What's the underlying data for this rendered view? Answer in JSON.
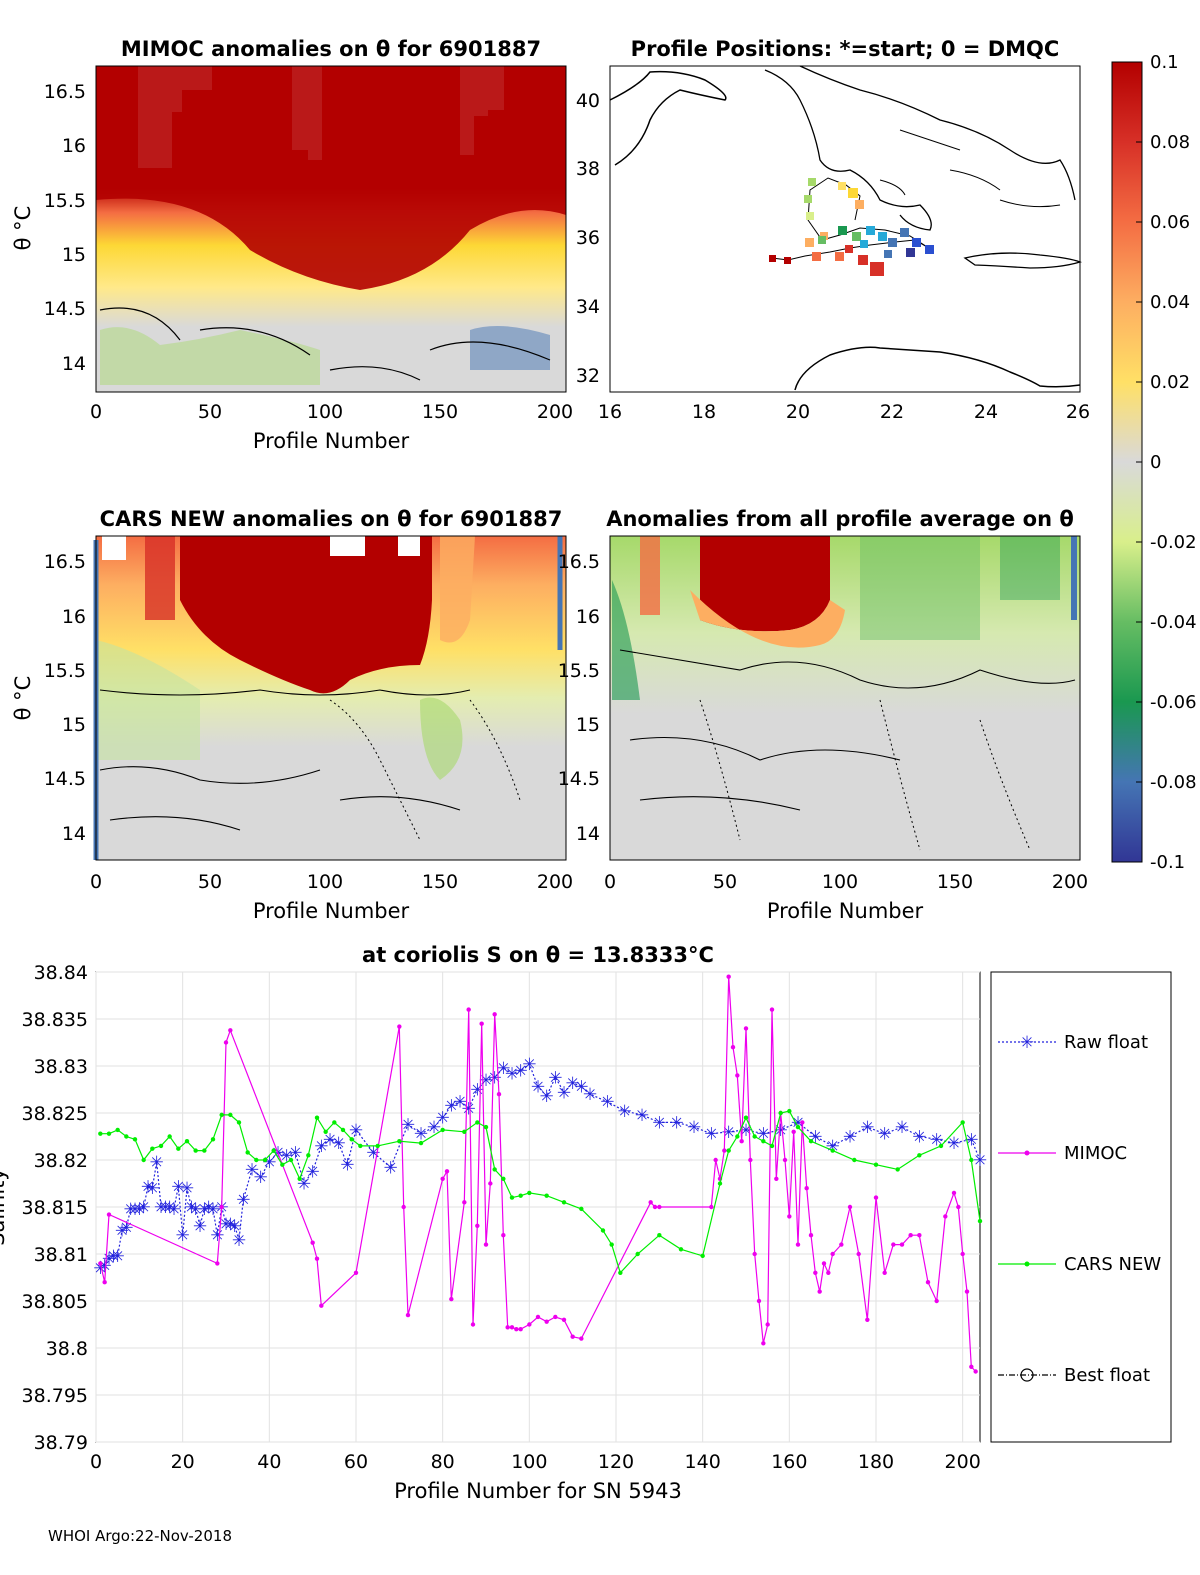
{
  "footer": "WHOI Argo:22-Nov-2018",
  "colorbar": {
    "ticks": [
      "0.1",
      "0.08",
      "0.06",
      "0.04",
      "0.02",
      "0",
      "-0.02",
      "-0.04",
      "-0.06",
      "-0.08",
      "-0.1"
    ],
    "range": [
      -0.1,
      0.1
    ],
    "colors": [
      "#313695",
      "#4575b4",
      "#1a9850",
      "#66bd63",
      "#a6d96a",
      "#d9ef8b",
      "#d9d9d9",
      "#ffe066",
      "#fdae61",
      "#f46d43",
      "#d73027",
      "#b30000"
    ]
  },
  "panel_mimoc": {
    "title": "MIMOC anomalies on θ  for 6901887",
    "ylabel": "θ °C",
    "xlabel": "Profile Number",
    "yticks": [
      "16.5",
      "16",
      "15.5",
      "15",
      "14.5",
      "14"
    ],
    "xticks": [
      "0",
      "50",
      "100",
      "150",
      "200"
    ]
  },
  "panel_map": {
    "title": "Profile Positions: *=start; 0 = DMQC",
    "yticks": [
      "40",
      "38",
      "36",
      "34",
      "32"
    ],
    "xticks": [
      "16",
      "18",
      "20",
      "22",
      "24",
      "26"
    ]
  },
  "panel_cars": {
    "title": "CARS NEW anomalies on θ for 6901887",
    "ylabel": "θ °C",
    "xlabel": "Profile Number",
    "yticks": [
      "16.5",
      "16",
      "15.5",
      "15",
      "14.5",
      "14"
    ],
    "xticks": [
      "0",
      "50",
      "100",
      "150",
      "200"
    ]
  },
  "panel_avg": {
    "title": "Anomalies from all profile average on θ",
    "xlabel": "Profile Number",
    "yticks": [
      "16.5",
      "16",
      "15.5",
      "15",
      "14.5",
      "14"
    ],
    "xticks": [
      "0",
      "50",
      "100",
      "150",
      "200"
    ]
  },
  "chart_data": {
    "type": "line",
    "title": "at coriolis S on θ = 13.8333°C",
    "xlabel": "Profile Number for SN 5943",
    "ylabel": "Salinity",
    "xlim": [
      0,
      204
    ],
    "ylim": [
      38.79,
      38.84
    ],
    "yticks": [
      "38.84",
      "38.835",
      "38.83",
      "38.825",
      "38.82",
      "38.815",
      "38.81",
      "38.805",
      "38.8",
      "38.795",
      "38.79"
    ],
    "xticks": [
      "0",
      "20",
      "40",
      "60",
      "80",
      "100",
      "120",
      "140",
      "160",
      "180",
      "200"
    ],
    "grid": true,
    "legend": [
      "Raw float",
      "MIMOC",
      "CARS NEW",
      "Best float"
    ],
    "series": [
      {
        "name": "Raw float",
        "color": "#2222dd",
        "marker": "asterisk",
        "x": [
          1,
          2,
          3,
          4,
          5,
          6,
          7,
          8,
          9,
          10,
          11,
          12,
          13,
          14,
          15,
          16,
          17,
          18,
          19,
          20,
          21,
          22,
          23,
          24,
          25,
          26,
          27,
          28,
          29,
          30,
          31,
          32,
          33,
          34,
          36,
          38,
          40,
          42,
          44,
          46,
          48,
          50,
          52,
          54,
          56,
          58,
          60,
          64,
          68,
          72,
          75,
          78,
          80,
          82,
          84,
          86,
          88,
          90,
          92,
          94,
          96,
          98,
          100,
          102,
          104,
          106,
          108,
          110,
          112,
          114,
          118,
          122,
          126,
          130,
          134,
          138,
          142,
          146,
          150,
          154,
          158,
          162,
          166,
          170,
          174,
          178,
          182,
          186,
          190,
          194,
          198,
          202,
          204
        ],
        "values": [
          38.8085,
          38.8088,
          38.8095,
          38.8098,
          38.8098,
          38.8125,
          38.8128,
          38.8148,
          38.8148,
          38.8148,
          38.815,
          38.8172,
          38.817,
          38.8198,
          38.815,
          38.815,
          38.815,
          38.8148,
          38.8172,
          38.812,
          38.817,
          38.815,
          38.8148,
          38.813,
          38.8148,
          38.815,
          38.8148,
          38.812,
          38.815,
          38.8132,
          38.8132,
          38.813,
          38.8115,
          38.8158,
          38.819,
          38.8182,
          38.8198,
          38.8208,
          38.8205,
          38.8208,
          38.8175,
          38.8188,
          38.8215,
          38.8222,
          38.8218,
          38.8195,
          38.8232,
          38.8208,
          38.8192,
          38.8238,
          38.8228,
          38.8235,
          38.8245,
          38.8258,
          38.8262,
          38.8255,
          38.8275,
          38.8285,
          38.8288,
          38.8298,
          38.8292,
          38.8295,
          38.8302,
          38.8278,
          38.8268,
          38.8288,
          38.8272,
          38.8282,
          38.8278,
          38.827,
          38.8262,
          38.8252,
          38.8248,
          38.824,
          38.824,
          38.8235,
          38.8228,
          38.823,
          38.8232,
          38.8228,
          38.8232,
          38.824,
          38.8225,
          38.8215,
          38.8225,
          38.8235,
          38.8228,
          38.8235,
          38.8225,
          38.8222,
          38.8218,
          38.8222,
          38.82
        ]
      },
      {
        "name": "MIMOC",
        "color": "#ee00ee",
        "marker": "dot",
        "x": [
          1,
          2,
          3,
          28,
          29,
          30,
          31,
          50,
          51,
          52,
          60,
          70,
          71,
          72,
          80,
          81,
          82,
          85,
          86,
          87,
          88,
          89,
          90,
          91,
          92,
          93,
          94,
          95,
          96,
          97,
          98,
          100,
          102,
          104,
          106,
          108,
          110,
          112,
          128,
          129,
          130,
          142,
          143,
          144,
          145,
          146,
          147,
          148,
          149,
          150,
          151,
          152,
          153,
          154,
          155,
          156,
          157,
          158,
          159,
          160,
          161,
          162,
          163,
          164,
          165,
          166,
          167,
          168,
          169,
          170,
          172,
          174,
          176,
          178,
          180,
          182,
          184,
          186,
          188,
          190,
          192,
          194,
          196,
          198,
          199,
          200,
          201,
          202,
          203
        ],
        "values": [
          38.809,
          38.807,
          38.8142,
          38.809,
          38.815,
          38.8325,
          38.8338,
          38.8112,
          38.8095,
          38.8045,
          38.808,
          38.8342,
          38.815,
          38.8035,
          38.818,
          38.8188,
          38.8052,
          38.8155,
          38.836,
          38.8025,
          38.813,
          38.8345,
          38.811,
          38.8175,
          38.8355,
          38.827,
          38.812,
          38.8022,
          38.8022,
          38.802,
          38.802,
          38.8025,
          38.8033,
          38.8028,
          38.8033,
          38.803,
          38.8012,
          38.801,
          38.8155,
          38.815,
          38.815,
          38.815,
          38.82,
          38.818,
          38.821,
          38.8395,
          38.832,
          38.829,
          38.822,
          38.834,
          38.82,
          38.81,
          38.805,
          38.8005,
          38.8025,
          38.836,
          38.818,
          38.825,
          38.82,
          38.814,
          38.823,
          38.811,
          38.824,
          38.817,
          38.812,
          38.808,
          38.806,
          38.809,
          38.808,
          38.81,
          38.811,
          38.815,
          38.81,
          38.803,
          38.816,
          38.808,
          38.811,
          38.811,
          38.812,
          38.812,
          38.807,
          38.805,
          38.814,
          38.8165,
          38.815,
          38.81,
          38.806,
          38.798,
          38.7975
        ]
      },
      {
        "name": "CARS NEW",
        "color": "#00ee00",
        "marker": "dot",
        "x": [
          1,
          3,
          5,
          7,
          9,
          11,
          13,
          15,
          17,
          19,
          21,
          23,
          25,
          27,
          29,
          31,
          33,
          35,
          37,
          39,
          41,
          43,
          45,
          47,
          49,
          51,
          53,
          55,
          57,
          59,
          61,
          65,
          70,
          75,
          80,
          85,
          88,
          90,
          92,
          94,
          96,
          98,
          100,
          104,
          108,
          112,
          117,
          119,
          121,
          125,
          130,
          135,
          140,
          144,
          146,
          148,
          150,
          152,
          154,
          156,
          158,
          160,
          162,
          165,
          170,
          175,
          180,
          185,
          190,
          195,
          200,
          202,
          204
        ],
        "values": [
          38.8228,
          38.8228,
          38.8232,
          38.8225,
          38.8222,
          38.82,
          38.8212,
          38.8215,
          38.8225,
          38.8212,
          38.822,
          38.821,
          38.821,
          38.8222,
          38.8248,
          38.8248,
          38.824,
          38.8208,
          38.82,
          38.82,
          38.821,
          38.8195,
          38.82,
          38.818,
          38.8205,
          38.8245,
          38.823,
          38.824,
          38.8232,
          38.8222,
          38.8215,
          38.8215,
          38.822,
          38.8218,
          38.8232,
          38.823,
          38.824,
          38.8235,
          38.819,
          38.818,
          38.816,
          38.8162,
          38.8165,
          38.8162,
          38.8155,
          38.8148,
          38.8125,
          38.811,
          38.808,
          38.81,
          38.812,
          38.8105,
          38.8098,
          38.8175,
          38.821,
          38.8225,
          38.8245,
          38.8225,
          38.822,
          38.8215,
          38.825,
          38.8252,
          38.8235,
          38.822,
          38.821,
          38.82,
          38.8195,
          38.819,
          38.8205,
          38.8215,
          38.824,
          38.82,
          38.8135
        ]
      },
      {
        "name": "Best float",
        "color": "#000000",
        "marker": "circle",
        "x": [],
        "values": []
      }
    ]
  }
}
